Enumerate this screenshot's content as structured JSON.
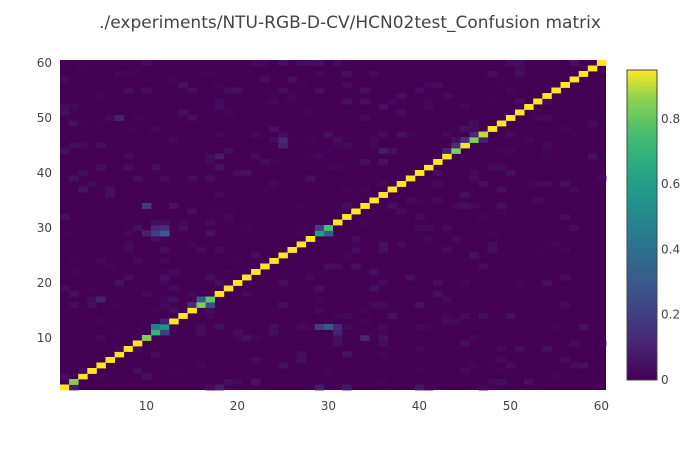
{
  "chart_data": {
    "type": "heatmap",
    "title": "./experiments/NTU-RGB-D-CV/HCN02test_Confusion matrix",
    "xlabel": "",
    "ylabel": "",
    "x_range": [
      1,
      60
    ],
    "y_range": [
      1,
      60
    ],
    "x_ticks": [
      10,
      20,
      30,
      40,
      50,
      60
    ],
    "y_ticks": [
      10,
      20,
      30,
      40,
      50,
      60
    ],
    "colorscale": "viridis",
    "colorbar": {
      "ticks": [
        0,
        0.2,
        0.4,
        0.6,
        0.8
      ],
      "range": [
        0,
        0.95
      ],
      "placement": "right"
    },
    "diagonal": {
      "default": 0.95,
      "overrides": {
        "2": 0.85,
        "10": 0.85,
        "11": 0.7,
        "12": 0.55,
        "16": 0.85,
        "17": 0.8,
        "29": 0.6,
        "30": 0.75,
        "44": 0.85,
        "46": 0.85,
        "47": 0.9
      }
    },
    "off_diagonal": [
      {
        "x": 11,
        "y": 12,
        "value": 0.45
      },
      {
        "x": 12,
        "y": 11,
        "value": 0.2
      },
      {
        "x": 12,
        "y": 13,
        "value": 0.1
      },
      {
        "x": 11,
        "y": 29,
        "value": 0.2
      },
      {
        "x": 12,
        "y": 29,
        "value": 0.3
      },
      {
        "x": 12,
        "y": 30,
        "value": 0.15
      },
      {
        "x": 11,
        "y": 30,
        "value": 0.12
      },
      {
        "x": 10,
        "y": 29,
        "value": 0.1
      },
      {
        "x": 10,
        "y": 34,
        "value": 0.18
      },
      {
        "x": 29,
        "y": 30,
        "value": 0.2
      },
      {
        "x": 30,
        "y": 29,
        "value": 0.3
      },
      {
        "x": 30,
        "y": 12,
        "value": 0.3
      },
      {
        "x": 29,
        "y": 12,
        "value": 0.2
      },
      {
        "x": 31,
        "y": 12,
        "value": 0.12
      },
      {
        "x": 31,
        "y": 11,
        "value": 0.1
      },
      {
        "x": 34,
        "y": 10,
        "value": 0.12
      },
      {
        "x": 5,
        "y": 17,
        "value": 0.1
      },
      {
        "x": 15,
        "y": 16,
        "value": 0.12
      },
      {
        "x": 16,
        "y": 17,
        "value": 0.3
      },
      {
        "x": 17,
        "y": 16,
        "value": 0.25
      },
      {
        "x": 25,
        "y": 46,
        "value": 0.12
      },
      {
        "x": 25,
        "y": 45,
        "value": 0.1
      },
      {
        "x": 45,
        "y": 46,
        "value": 0.15
      },
      {
        "x": 46,
        "y": 47,
        "value": 0.12
      },
      {
        "x": 47,
        "y": 46,
        "value": 0.1
      },
      {
        "x": 43,
        "y": 44,
        "value": 0.1
      },
      {
        "x": 7,
        "y": 50,
        "value": 0.1
      },
      {
        "x": 36,
        "y": 44,
        "value": 0.08
      },
      {
        "x": 18,
        "y": 43,
        "value": 0.08
      },
      {
        "x": 44,
        "y": 45,
        "value": 0.15
      },
      {
        "x": 2,
        "y": 1,
        "value": 0.08
      },
      {
        "x": 18,
        "y": 1,
        "value": 0.08
      },
      {
        "x": 29,
        "y": 1,
        "value": 0.08
      },
      {
        "x": 32,
        "y": 1,
        "value": 0.07
      },
      {
        "x": 40,
        "y": 1,
        "value": 0.07
      }
    ],
    "noise": {
      "max": 0.05,
      "density": 0.12
    }
  }
}
